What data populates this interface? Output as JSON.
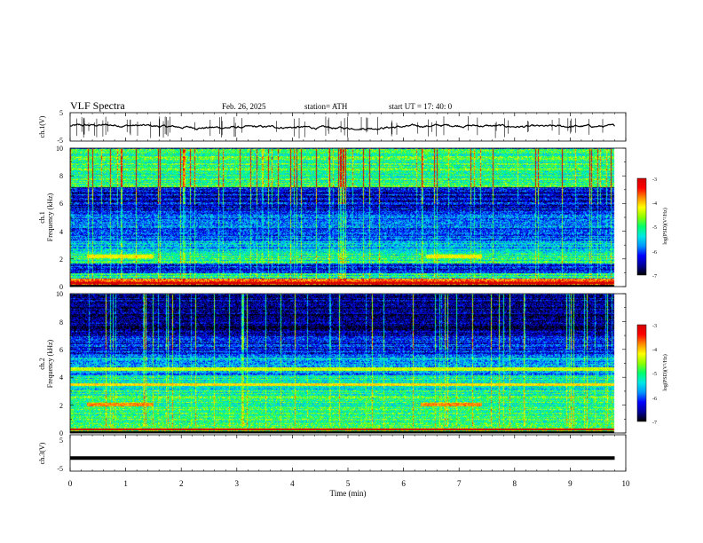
{
  "header": {
    "title": "VLF  Spectra",
    "date": "Feb. 26, 2025",
    "station": "station= ATH",
    "start": "start  UT  =   17: 40: 0"
  },
  "colors": {
    "background": "#ffffff",
    "axis": "#000000",
    "colormap": [
      "#000000",
      "#00009a",
      "#0000ff",
      "#0096ff",
      "#00e6e6",
      "#00ff6e",
      "#8cff00",
      "#ffff00",
      "#ff8c00",
      "#ff0000",
      "#d20000",
      "#ffffff"
    ]
  },
  "chart_data": [
    {
      "type": "line",
      "name": "ch1-voltage",
      "ylabel": "ch.1(V)",
      "ylim": [
        -5,
        5
      ],
      "yticks": [
        "5",
        "-5"
      ],
      "xlim": [
        0,
        10
      ],
      "baseline_value": 0,
      "fluctuation_range": [
        -1,
        1
      ],
      "spikes": true
    },
    {
      "type": "heatmap",
      "name": "ch1-spectrogram",
      "ylabel_channel": "ch.1",
      "ylabel": "Frequency  (kHz)",
      "ylim": [
        0,
        10
      ],
      "yticks": [
        "0",
        "2",
        "4",
        "6",
        "8",
        "10"
      ],
      "xlim": [
        0,
        10
      ],
      "colorbar": {
        "label": "log(PSD)(V²/Hz)",
        "range": [
          -7,
          -3
        ],
        "ticks": [
          "-3",
          "-4",
          "-5",
          "-6",
          "-7"
        ]
      },
      "frequency_profile_log_psd": [
        {
          "freq": [
            0.0,
            0.6
          ],
          "level": -3.6
        },
        {
          "freq": [
            0.6,
            1.0
          ],
          "level": -5.2
        },
        {
          "freq": [
            1.0,
            1.7
          ],
          "level": -6.2
        },
        {
          "freq": [
            1.7,
            2.6
          ],
          "level": -5.1
        },
        {
          "freq": [
            2.6,
            3.3
          ],
          "level": -5.6
        },
        {
          "freq": [
            3.3,
            5.5
          ],
          "level": -6.0
        },
        {
          "freq": [
            5.5,
            7.2
          ],
          "level": -6.3
        },
        {
          "freq": [
            7.2,
            10.0
          ],
          "level": -5.0
        }
      ],
      "intense_bands": [
        {
          "freq": 2.2,
          "level": -4.2,
          "time": [
            0.3,
            1.5
          ]
        },
        {
          "freq": 2.2,
          "level": -4.2,
          "time": [
            6.4,
            7.4
          ]
        }
      ]
    },
    {
      "type": "heatmap",
      "name": "ch2-spectrogram",
      "ylabel_channel": "ch.2",
      "ylabel": "Frequency  (kHz)",
      "ylim": [
        0,
        10
      ],
      "yticks": [
        "0",
        "2",
        "4",
        "6",
        "8",
        "10"
      ],
      "xlim": [
        0,
        10
      ],
      "colorbar": {
        "label": "log(PSD)(V²/Hz)",
        "range": [
          -7,
          -3
        ],
        "ticks": [
          "-3",
          "-4",
          "-5",
          "-6",
          "-7"
        ]
      },
      "frequency_profile_log_psd": [
        {
          "freq": [
            0.0,
            1.0
          ],
          "level": -5.0
        },
        {
          "freq": [
            1.0,
            2.7
          ],
          "level": -5.0
        },
        {
          "freq": [
            2.7,
            4.2
          ],
          "level": -5.2
        },
        {
          "freq": [
            4.2,
            5.6
          ],
          "level": -5.7
        },
        {
          "freq": [
            5.6,
            7.0
          ],
          "level": -6.2
        },
        {
          "freq": [
            7.0,
            10.0
          ],
          "level": -6.7
        }
      ],
      "intense_bands": [
        {
          "freq": 2.05,
          "level": -3.8,
          "time": [
            0.3,
            1.5
          ]
        },
        {
          "freq": 2.05,
          "level": -3.8,
          "time": [
            6.3,
            7.4
          ]
        },
        {
          "freq": 3.5,
          "level": -4.1,
          "time": [
            0.0,
            9.8
          ]
        },
        {
          "freq": 4.6,
          "level": -4.4,
          "time": [
            0.0,
            9.8
          ]
        }
      ]
    },
    {
      "type": "line",
      "name": "ch3-voltage",
      "ylabel": "ch.3(V)",
      "ylim": [
        -5,
        5
      ],
      "yticks": [
        "5",
        "-5"
      ],
      "xlim": [
        0,
        10
      ],
      "xlabel": "Time  (min)",
      "xticks": [
        "0",
        "1",
        "2",
        "3",
        "4",
        "5",
        "6",
        "7",
        "8",
        "9",
        "10"
      ],
      "baseline_value": -1.4
    }
  ]
}
